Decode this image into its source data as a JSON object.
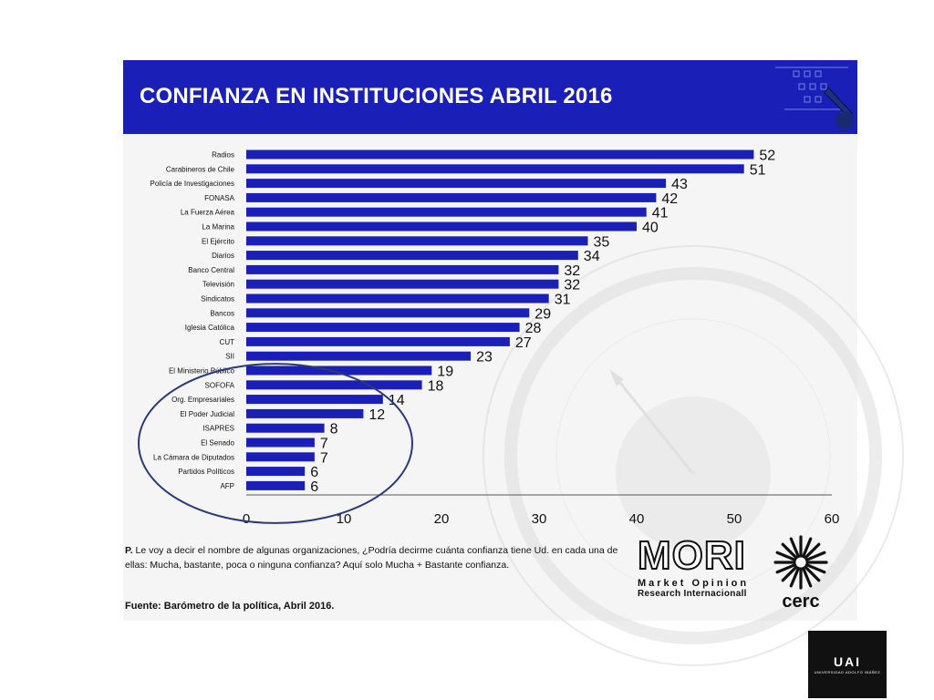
{
  "slide": {
    "title": "CONFIANZA EN INSTITUCIONES ABRIL 2016",
    "question_prefix": "P.",
    "question": "Le voy a decir el nombre de algunas organizaciones, ¿Podría decirme cuánta confianza tiene Ud. en cada una de ellas: Mucha, bastante, poca o ninguna confianza? Aquí solo Mucha + Bastante confianza.",
    "source": "Fuente: Barómetro de la política, Abril 2016."
  },
  "logos": {
    "mori_word": "MORI",
    "mori_line1": "Market Opinion",
    "mori_line2": "Research Internacionall",
    "cerc_word": "cerc",
    "uai_word": "UAI",
    "uai_sub": "UNIVERSIDAD ADOLFO IBÁÑEZ"
  },
  "colors": {
    "banner": "#1a1fb8",
    "bar": "#1a1fb8",
    "ellipse": "#2a3a7a"
  },
  "chart_data": {
    "type": "bar",
    "orientation": "horizontal",
    "title": "CONFIANZA EN INSTITUCIONES ABRIL 2016",
    "categories": [
      "Radios",
      "Carabineros de Chile",
      "Policía de Investigaciones",
      "FONASA",
      "La Fuerza Aérea",
      "La  Marina",
      "El Ejército",
      "Diarios",
      "Banco Central",
      "Televisión",
      "Sindicatos",
      "Bancos",
      "Iglesia Católica",
      "CUT",
      "SII",
      "El Ministerio Público",
      "SOFOFA",
      "Org. Empresariales",
      "El Poder Judicial",
      "ISAPRES",
      "El Senado",
      "La Cámara de Diputados",
      "Partidos Políticos",
      "AFP"
    ],
    "values": [
      52,
      51,
      43,
      42,
      41,
      40,
      35,
      34,
      32,
      32,
      31,
      29,
      28,
      27,
      23,
      19,
      18,
      14,
      12,
      8,
      7,
      7,
      6,
      6
    ],
    "xlim": [
      0,
      60
    ],
    "xticks": [
      0,
      10,
      20,
      30,
      40,
      50,
      60
    ],
    "grid": false,
    "highlighted_range": [
      "Org. Empresariales",
      "AFP"
    ]
  }
}
